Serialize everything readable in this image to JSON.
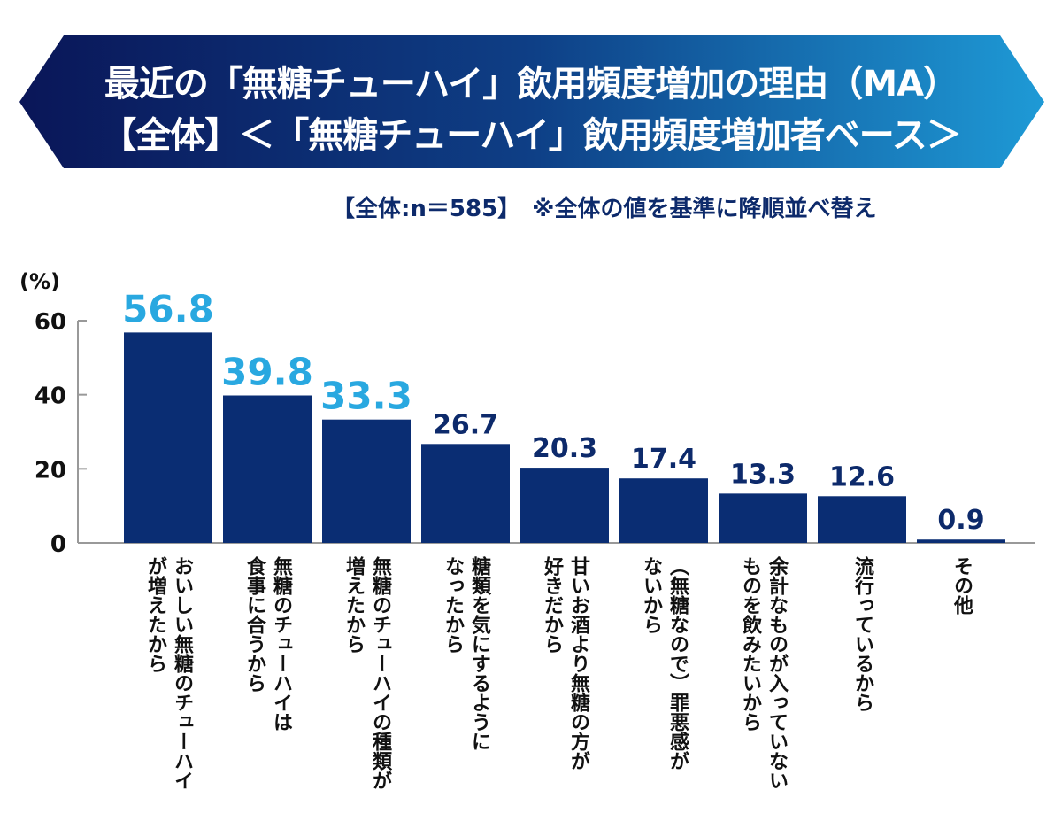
{
  "header": {
    "title_line1": "最近の「無糖チューハイ」飲用頻度増加の理由（MA）",
    "title_line2": "【全体】＜「無糖チューハイ」飲用頻度増加者ベース＞",
    "note": "【全体:n＝585】　※全体の値を基準に降順並べ替え"
  },
  "colors": {
    "bar": "#0a2d73",
    "highlight_label": "#29a8e0",
    "label": "#0d2a6b",
    "banner_start": "#0a1658",
    "banner_end": "#1e9ad6"
  },
  "chart_data": {
    "type": "bar",
    "ylabel": "(%)",
    "ylim": [
      0,
      60
    ],
    "yticks": [
      "0",
      "20",
      "40",
      "60"
    ],
    "grid": false,
    "categories": [
      "おいしい無糖のチューハイ\nが増えたから",
      "無糖のチューハイは\n食事に合うから",
      "無糖のチューハイの種類が\n増えたから",
      "糖類を気にするように\nなったから",
      "甘いお酒より無糖の方が\n好きだから",
      "（無糖なので）罪悪感が\nないから",
      "余計なものが入っていない\nものを飲みたいから",
      "流行っているから",
      "その他"
    ],
    "values": [
      56.8,
      39.8,
      33.3,
      26.7,
      20.3,
      17.4,
      13.3,
      12.6,
      0.9
    ],
    "labels": [
      "56.8",
      "39.8",
      "33.3",
      "26.7",
      "20.3",
      "17.4",
      "13.3",
      "12.6",
      "0.9"
    ],
    "highlighted_top": 3
  }
}
